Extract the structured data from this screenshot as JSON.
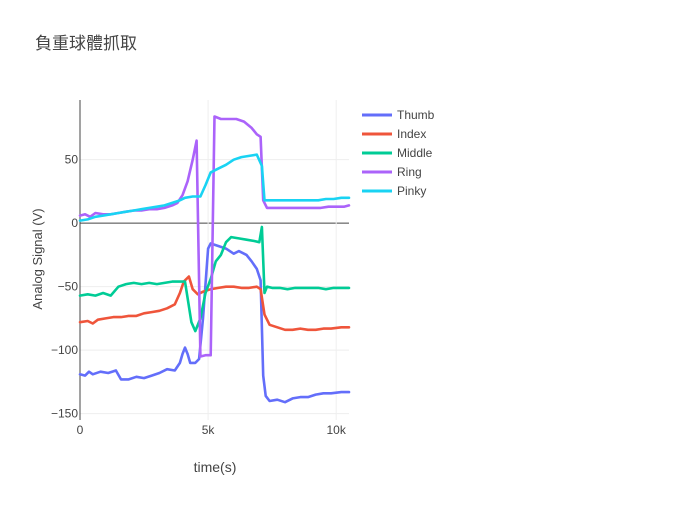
{
  "chart_data": {
    "type": "line",
    "title": "負重球體抓取",
    "xlabel": "time(s)",
    "ylabel": "Analog Signal (V)",
    "xlim": [
      0,
      10500
    ],
    "ylim": [
      -155,
      97
    ],
    "x_ticks": [
      0,
      5000,
      10000
    ],
    "x_tick_labels": [
      "0",
      "5k",
      "10k"
    ],
    "y_ticks": [
      50,
      0,
      -50,
      -100,
      -150
    ],
    "y_tick_labels": [
      "50",
      "0",
      "−50",
      "−100",
      "−150"
    ],
    "grid": true,
    "legend_position": "top-right",
    "series": [
      {
        "name": "Thumb",
        "color": "#636efa",
        "points": [
          [
            0,
            -119
          ],
          [
            200,
            -120
          ],
          [
            350,
            -117
          ],
          [
            500,
            -119
          ],
          [
            800,
            -117
          ],
          [
            1100,
            -118
          ],
          [
            1400,
            -116
          ],
          [
            1600,
            -123
          ],
          [
            1900,
            -123
          ],
          [
            2200,
            -121
          ],
          [
            2500,
            -122
          ],
          [
            2800,
            -120
          ],
          [
            3100,
            -118
          ],
          [
            3400,
            -115
          ],
          [
            3700,
            -116
          ],
          [
            3900,
            -110
          ],
          [
            4000,
            -103
          ],
          [
            4100,
            -98
          ],
          [
            4200,
            -103
          ],
          [
            4300,
            -110
          ],
          [
            4500,
            -110
          ],
          [
            4650,
            -107
          ],
          [
            4800,
            -75
          ],
          [
            5000,
            -20
          ],
          [
            5100,
            -16
          ],
          [
            5400,
            -18
          ],
          [
            5700,
            -20
          ],
          [
            6000,
            -24
          ],
          [
            6200,
            -22
          ],
          [
            6500,
            -25
          ],
          [
            6700,
            -30
          ],
          [
            6900,
            -36
          ],
          [
            7050,
            -45
          ],
          [
            7150,
            -120
          ],
          [
            7250,
            -136
          ],
          [
            7400,
            -140
          ],
          [
            7700,
            -139
          ],
          [
            8000,
            -141
          ],
          [
            8300,
            -138
          ],
          [
            8600,
            -137
          ],
          [
            8900,
            -137
          ],
          [
            9200,
            -135
          ],
          [
            9500,
            -134
          ],
          [
            9800,
            -134
          ],
          [
            10200,
            -133
          ],
          [
            10500,
            -133
          ]
        ]
      },
      {
        "name": "Index",
        "color": "#ef553b",
        "points": [
          [
            0,
            -78
          ],
          [
            300,
            -77
          ],
          [
            500,
            -79
          ],
          [
            700,
            -76
          ],
          [
            1000,
            -75
          ],
          [
            1300,
            -74
          ],
          [
            1600,
            -74
          ],
          [
            1900,
            -73
          ],
          [
            2200,
            -73
          ],
          [
            2500,
            -71
          ],
          [
            2800,
            -70
          ],
          [
            3100,
            -69
          ],
          [
            3400,
            -67
          ],
          [
            3700,
            -64
          ],
          [
            3900,
            -55
          ],
          [
            4050,
            -46
          ],
          [
            4250,
            -42
          ],
          [
            4400,
            -52
          ],
          [
            4600,
            -56
          ],
          [
            4800,
            -54
          ],
          [
            5100,
            -52
          ],
          [
            5400,
            -51
          ],
          [
            5700,
            -50
          ],
          [
            6000,
            -50
          ],
          [
            6300,
            -51
          ],
          [
            6600,
            -51
          ],
          [
            6900,
            -50
          ],
          [
            7050,
            -52
          ],
          [
            7200,
            -72
          ],
          [
            7400,
            -80
          ],
          [
            7700,
            -82
          ],
          [
            8000,
            -84
          ],
          [
            8300,
            -84
          ],
          [
            8600,
            -83
          ],
          [
            8900,
            -84
          ],
          [
            9200,
            -84
          ],
          [
            9500,
            -83
          ],
          [
            9800,
            -83
          ],
          [
            10200,
            -82
          ],
          [
            10500,
            -82
          ]
        ]
      },
      {
        "name": "Middle",
        "color": "#00cc96",
        "points": [
          [
            0,
            -57
          ],
          [
            300,
            -56
          ],
          [
            600,
            -57
          ],
          [
            900,
            -55
          ],
          [
            1200,
            -57
          ],
          [
            1500,
            -50
          ],
          [
            1800,
            -48
          ],
          [
            2100,
            -47
          ],
          [
            2400,
            -48
          ],
          [
            2700,
            -47
          ],
          [
            3000,
            -48
          ],
          [
            3300,
            -47
          ],
          [
            3600,
            -46
          ],
          [
            3900,
            -46
          ],
          [
            4100,
            -46
          ],
          [
            4350,
            -78
          ],
          [
            4500,
            -85
          ],
          [
            4700,
            -75
          ],
          [
            4900,
            -55
          ],
          [
            5100,
            -44
          ],
          [
            5300,
            -30
          ],
          [
            5500,
            -25
          ],
          [
            5700,
            -15
          ],
          [
            5900,
            -11
          ],
          [
            6200,
            -12
          ],
          [
            6500,
            -13
          ],
          [
            6800,
            -14
          ],
          [
            7000,
            -15
          ],
          [
            7100,
            -3
          ],
          [
            7200,
            -55
          ],
          [
            7300,
            -50
          ],
          [
            7500,
            -51
          ],
          [
            7800,
            -51
          ],
          [
            8100,
            -52
          ],
          [
            8400,
            -51
          ],
          [
            8700,
            -51
          ],
          [
            9000,
            -51
          ],
          [
            9300,
            -51
          ],
          [
            9600,
            -52
          ],
          [
            9900,
            -51
          ],
          [
            10200,
            -51
          ],
          [
            10500,
            -51
          ]
        ]
      },
      {
        "name": "Ring",
        "color": "#ab63fa",
        "points": [
          [
            0,
            6
          ],
          [
            200,
            7
          ],
          [
            400,
            5
          ],
          [
            600,
            8
          ],
          [
            900,
            7
          ],
          [
            1200,
            7
          ],
          [
            1500,
            8
          ],
          [
            1800,
            9
          ],
          [
            2100,
            10
          ],
          [
            2400,
            10
          ],
          [
            2700,
            11
          ],
          [
            3000,
            11
          ],
          [
            3300,
            12
          ],
          [
            3600,
            14
          ],
          [
            3800,
            16
          ],
          [
            4000,
            22
          ],
          [
            4200,
            33
          ],
          [
            4400,
            50
          ],
          [
            4550,
            65
          ],
          [
            4700,
            -105
          ],
          [
            4900,
            -104
          ],
          [
            5100,
            -104
          ],
          [
            5250,
            84
          ],
          [
            5500,
            82
          ],
          [
            5800,
            82
          ],
          [
            6100,
            82
          ],
          [
            6400,
            80
          ],
          [
            6700,
            75
          ],
          [
            6900,
            70
          ],
          [
            7050,
            68
          ],
          [
            7150,
            18
          ],
          [
            7300,
            12
          ],
          [
            7600,
            12
          ],
          [
            7900,
            12
          ],
          [
            8200,
            12
          ],
          [
            8500,
            12
          ],
          [
            8800,
            12
          ],
          [
            9100,
            12
          ],
          [
            9400,
            12
          ],
          [
            9700,
            13
          ],
          [
            10000,
            13
          ],
          [
            10300,
            13
          ],
          [
            10500,
            14
          ]
        ]
      },
      {
        "name": "Pinky",
        "color": "#19d3f3",
        "points": [
          [
            0,
            2
          ],
          [
            300,
            3
          ],
          [
            600,
            5
          ],
          [
            900,
            6
          ],
          [
            1200,
            7
          ],
          [
            1500,
            8
          ],
          [
            1800,
            9
          ],
          [
            2100,
            10
          ],
          [
            2400,
            11
          ],
          [
            2700,
            12
          ],
          [
            3000,
            13
          ],
          [
            3300,
            14
          ],
          [
            3600,
            16
          ],
          [
            3900,
            18
          ],
          [
            4100,
            20
          ],
          [
            4400,
            21
          ],
          [
            4700,
            21
          ],
          [
            4900,
            30
          ],
          [
            5100,
            40
          ],
          [
            5400,
            43
          ],
          [
            5700,
            46
          ],
          [
            6000,
            50
          ],
          [
            6300,
            52
          ],
          [
            6600,
            53
          ],
          [
            6900,
            54
          ],
          [
            7100,
            45
          ],
          [
            7200,
            18
          ],
          [
            7500,
            18
          ],
          [
            7800,
            18
          ],
          [
            8100,
            18
          ],
          [
            8400,
            18
          ],
          [
            8700,
            18
          ],
          [
            9000,
            18
          ],
          [
            9300,
            18
          ],
          [
            9600,
            19
          ],
          [
            9900,
            19
          ],
          [
            10200,
            20
          ],
          [
            10500,
            20
          ]
        ]
      }
    ]
  }
}
